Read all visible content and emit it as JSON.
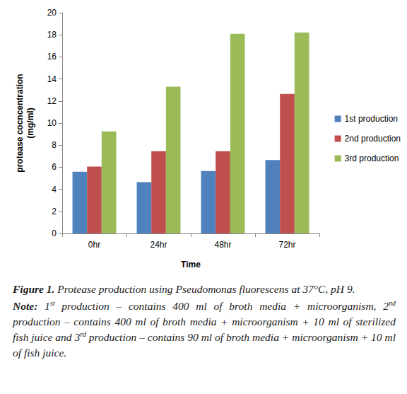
{
  "chart_data": {
    "type": "bar",
    "categories": [
      "0hr",
      "24hr",
      "48hr",
      "72hr"
    ],
    "series": [
      {
        "name": "1st production",
        "color": "#4f81bd",
        "values": [
          5.6,
          4.65,
          5.65,
          6.65
        ]
      },
      {
        "name": "2nd production",
        "color": "#c0504d",
        "values": [
          6.05,
          7.45,
          7.45,
          12.65
        ]
      },
      {
        "name": "3rd production",
        "color": "#9bbb59",
        "values": [
          9.25,
          13.3,
          18.1,
          18.2
        ]
      }
    ],
    "x_label": "Time",
    "y_label": "protease cocncentration\n(mg/ml)",
    "ylim": [
      0,
      20
    ],
    "yticks": [
      0,
      2,
      4,
      6,
      8,
      10,
      12,
      14,
      16,
      18,
      20
    ],
    "grid": false,
    "legend": "right"
  },
  "caption": {
    "title": {
      "label": "Figure 1.",
      "text": "Protease production using Pseudomonas fluorescens at 37°C, pH 9."
    },
    "note": {
      "label": "Note:",
      "text": "1st production – contains 400 ml of broth media + microorganism, 2nd production – contains 400 ml of broth media + microorganism + 10 ml of sterilized fish juice and 3rd production – contains 90 ml of broth media + microorganism + 10 ml of fish juice."
    }
  }
}
